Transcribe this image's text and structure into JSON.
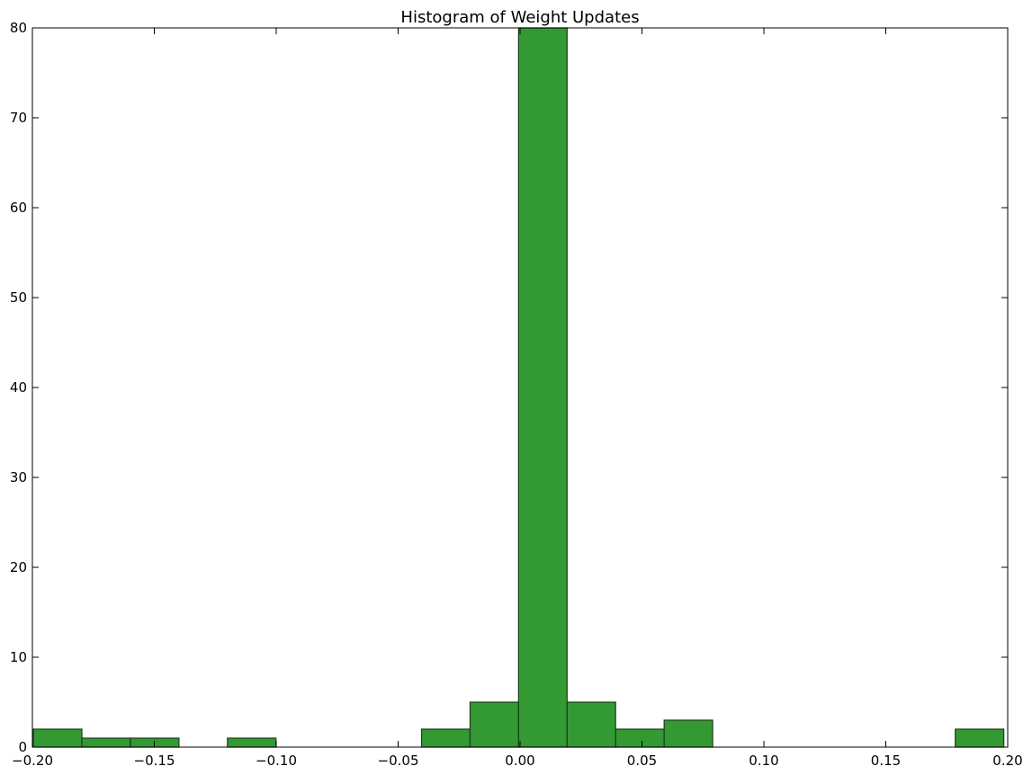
{
  "chart_data": {
    "type": "bar",
    "title": "Histogram of Weight Updates",
    "xlabel": "",
    "ylabel": "",
    "xlim": [
      -0.2,
      0.2
    ],
    "ylim": [
      0,
      80
    ],
    "x_ticks": [
      -0.2,
      -0.15,
      -0.1,
      -0.05,
      0.0,
      0.05,
      0.1,
      0.15,
      0.2
    ],
    "x_tick_labels": [
      "−0.20",
      "−0.15",
      "−0.10",
      "−0.05",
      "0.00",
      "0.05",
      "0.10",
      "0.15",
      "0.20"
    ],
    "y_ticks": [
      0,
      10,
      20,
      30,
      40,
      50,
      60,
      70,
      80
    ],
    "y_tick_labels": [
      "0",
      "10",
      "20",
      "30",
      "40",
      "50",
      "60",
      "70",
      "80"
    ],
    "bin_edges": [
      -0.1996,
      -0.1797,
      -0.1598,
      -0.1399,
      -0.12,
      -0.1001,
      -0.0802,
      -0.0603,
      -0.0404,
      -0.0205,
      -0.0006,
      0.0193,
      0.0392,
      0.0591,
      0.079,
      0.0989,
      0.1188,
      0.1387,
      0.1586,
      0.1785,
      0.1984
    ],
    "counts": [
      2,
      1,
      1,
      0,
      1,
      0,
      0,
      0,
      2,
      5,
      80,
      5,
      2,
      3,
      0,
      0,
      0,
      0,
      0,
      2
    ],
    "bar_color": "#339933",
    "edge_color": "#1a3d1a",
    "grid": false,
    "legend": "none"
  }
}
